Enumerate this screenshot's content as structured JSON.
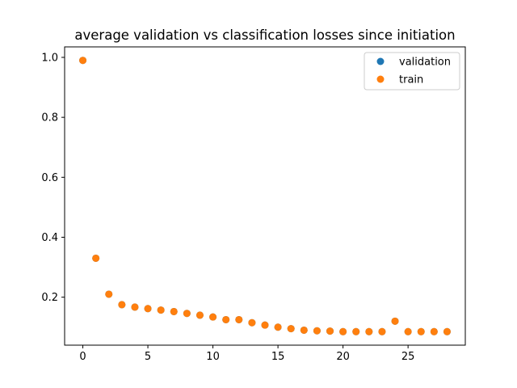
{
  "chart_data": {
    "type": "scatter",
    "title": "average validation vs classification losses since initiation",
    "xlabel": "",
    "ylabel": "",
    "xlim": [
      -1.4,
      29.4
    ],
    "ylim": [
      0.04,
      1.035
    ],
    "xticks": [
      0,
      5,
      10,
      15,
      20,
      25
    ],
    "yticks": [
      0.2,
      0.4,
      0.6,
      0.8,
      1.0
    ],
    "xtick_labels": [
      "0",
      "5",
      "10",
      "15",
      "20",
      "25"
    ],
    "ytick_labels": [
      "0.2",
      "0.4",
      "0.6",
      "0.8",
      "1.0"
    ],
    "grid": false,
    "legend_position": "top-right",
    "x": [
      0,
      1,
      2,
      3,
      4,
      5,
      6,
      7,
      8,
      9,
      10,
      11,
      12,
      13,
      14,
      15,
      16,
      17,
      18,
      19,
      20,
      21,
      22,
      23,
      24,
      25,
      26,
      27,
      28
    ],
    "series": [
      {
        "name": "validation",
        "color": "#1f77b4",
        "values": [
          0.99,
          0.33,
          0.21,
          0.175,
          0.167,
          0.162,
          0.157,
          0.152,
          0.146,
          0.14,
          0.134,
          0.125,
          0.125,
          0.115,
          0.107,
          0.1,
          0.095,
          0.09,
          0.088,
          0.087,
          0.085,
          0.085,
          0.085,
          0.085,
          0.12,
          0.085,
          0.085,
          0.085,
          0.085
        ]
      },
      {
        "name": "train",
        "color": "#ff7f0e",
        "values": [
          0.99,
          0.33,
          0.21,
          0.175,
          0.167,
          0.162,
          0.157,
          0.152,
          0.146,
          0.14,
          0.134,
          0.125,
          0.125,
          0.115,
          0.107,
          0.1,
          0.095,
          0.09,
          0.088,
          0.087,
          0.085,
          0.085,
          0.085,
          0.085,
          0.12,
          0.085,
          0.085,
          0.085,
          0.085
        ]
      }
    ]
  }
}
